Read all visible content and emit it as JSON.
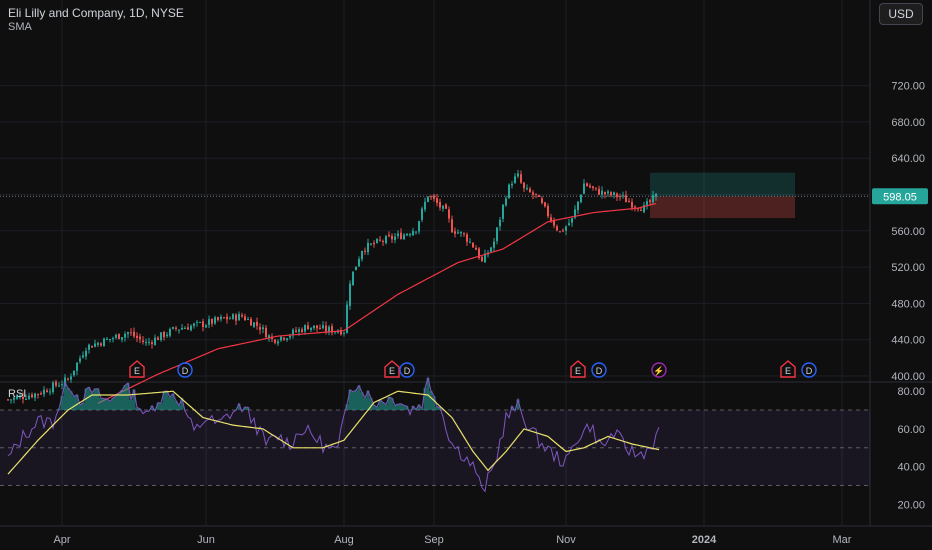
{
  "header": {
    "symbol_title": "Eli Lilly and Company, 1D, NYSE",
    "indicator": "SMA",
    "currency_button": "USD"
  },
  "rsi_pane": {
    "label": "RSI"
  },
  "colors": {
    "up": "#26a69a",
    "down": "#ef5350",
    "sma": "#f23645",
    "rsi": "#7e57c2",
    "rsi_ma": "#e8e26a",
    "earnings": "#f23645",
    "dividend": "#2962ff",
    "split": "#9c27b0"
  },
  "chart_data": [
    {
      "type": "candlestick",
      "title": "Eli Lilly and Company, 1D, NYSE",
      "series": [
        {
          "name": "SMA",
          "indicator": true
        }
      ],
      "y_axis": {
        "ticks": [
          "400.00",
          "440.00",
          "480.00",
          "520.00",
          "560.00",
          "600.00",
          "640.00",
          "680.00",
          "720.00"
        ],
        "range": [
          370,
          738
        ]
      },
      "x_axis": {
        "ticks": [
          "Apr",
          "Jun",
          "Aug",
          "Sep",
          "Nov",
          "2024",
          "Mar"
        ]
      },
      "last_price": "598.05",
      "price_anchors": [
        {
          "t": 0,
          "p": 374
        },
        {
          "t": 10,
          "p": 381
        },
        {
          "t": 20,
          "p": 396
        },
        {
          "t": 26,
          "p": 432
        },
        {
          "t": 34,
          "p": 441
        },
        {
          "t": 40,
          "p": 448
        },
        {
          "t": 46,
          "p": 436
        },
        {
          "t": 56,
          "p": 452
        },
        {
          "t": 66,
          "p": 458
        },
        {
          "t": 72,
          "p": 463
        },
        {
          "t": 78,
          "p": 466
        },
        {
          "t": 84,
          "p": 454
        },
        {
          "t": 88,
          "p": 440
        },
        {
          "t": 94,
          "p": 446
        },
        {
          "t": 100,
          "p": 455
        },
        {
          "t": 106,
          "p": 451
        },
        {
          "t": 112,
          "p": 450
        },
        {
          "t": 114,
          "p": 505
        },
        {
          "t": 118,
          "p": 540
        },
        {
          "t": 124,
          "p": 548
        },
        {
          "t": 132,
          "p": 556
        },
        {
          "t": 136,
          "p": 563
        },
        {
          "t": 140,
          "p": 600
        },
        {
          "t": 143,
          "p": 590
        },
        {
          "t": 146,
          "p": 580
        },
        {
          "t": 148,
          "p": 562
        },
        {
          "t": 152,
          "p": 555
        },
        {
          "t": 156,
          "p": 540
        },
        {
          "t": 158,
          "p": 525
        },
        {
          "t": 162,
          "p": 548
        },
        {
          "t": 166,
          "p": 600
        },
        {
          "t": 168,
          "p": 615
        },
        {
          "t": 170,
          "p": 620
        },
        {
          "t": 172,
          "p": 605
        },
        {
          "t": 176,
          "p": 598
        },
        {
          "t": 180,
          "p": 578
        },
        {
          "t": 184,
          "p": 558
        },
        {
          "t": 188,
          "p": 572
        },
        {
          "t": 192,
          "p": 612
        },
        {
          "t": 196,
          "p": 604
        },
        {
          "t": 200,
          "p": 600
        },
        {
          "t": 204,
          "p": 598
        },
        {
          "t": 208,
          "p": 590
        },
        {
          "t": 212,
          "p": 585
        },
        {
          "t": 216,
          "p": 598
        }
      ],
      "sma_anchors": [
        {
          "t": 30,
          "p": 370
        },
        {
          "t": 50,
          "p": 402
        },
        {
          "t": 70,
          "p": 430
        },
        {
          "t": 90,
          "p": 444
        },
        {
          "t": 112,
          "p": 450
        },
        {
          "t": 130,
          "p": 490
        },
        {
          "t": 150,
          "p": 525
        },
        {
          "t": 165,
          "p": 540
        },
        {
          "t": 180,
          "p": 570
        },
        {
          "t": 195,
          "p": 580
        },
        {
          "t": 210,
          "p": 585
        },
        {
          "t": 216,
          "p": 590
        }
      ],
      "position_box": {
        "entry": 598,
        "target": 624,
        "stop": 574
      },
      "events": [
        {
          "type": "E",
          "kind": "earnings",
          "t": 43
        },
        {
          "type": "D",
          "kind": "dividend",
          "t": 59
        },
        {
          "type": "E",
          "kind": "earnings",
          "t": 128
        },
        {
          "type": "D",
          "kind": "dividend",
          "t": 133
        },
        {
          "type": "E",
          "kind": "earnings",
          "t": 190
        },
        {
          "type": "D",
          "kind": "dividend",
          "t": 197
        },
        {
          "type": "⚡",
          "kind": "split",
          "t": 217
        },
        {
          "type": "E",
          "kind": "earnings",
          "t": 260
        },
        {
          "type": "D",
          "kind": "dividend",
          "t": 267
        }
      ]
    },
    {
      "type": "line",
      "title": "RSI",
      "y_axis": {
        "ticks": [
          "20.00",
          "40.00",
          "60.00",
          "80.00"
        ],
        "range": [
          16,
          92
        ]
      },
      "bands": {
        "upper": 70,
        "middle": 50,
        "lower": 30
      },
      "series": [
        {
          "name": "RSI",
          "anchors": [
            {
              "t": 0,
              "v": 44
            },
            {
              "t": 5,
              "v": 56
            },
            {
              "t": 10,
              "v": 64
            },
            {
              "t": 15,
              "v": 64
            },
            {
              "t": 20,
              "v": 85
            },
            {
              "t": 24,
              "v": 76
            },
            {
              "t": 28,
              "v": 80
            },
            {
              "t": 34,
              "v": 74
            },
            {
              "t": 38,
              "v": 83
            },
            {
              "t": 42,
              "v": 78
            },
            {
              "t": 46,
              "v": 66
            },
            {
              "t": 50,
              "v": 76
            },
            {
              "t": 54,
              "v": 80
            },
            {
              "t": 58,
              "v": 74
            },
            {
              "t": 62,
              "v": 58
            },
            {
              "t": 66,
              "v": 66
            },
            {
              "t": 70,
              "v": 62
            },
            {
              "t": 74,
              "v": 68
            },
            {
              "t": 78,
              "v": 72
            },
            {
              "t": 82,
              "v": 64
            },
            {
              "t": 86,
              "v": 52
            },
            {
              "t": 90,
              "v": 56
            },
            {
              "t": 94,
              "v": 52
            },
            {
              "t": 98,
              "v": 60
            },
            {
              "t": 102,
              "v": 56
            },
            {
              "t": 106,
              "v": 50
            },
            {
              "t": 110,
              "v": 48
            },
            {
              "t": 114,
              "v": 84
            },
            {
              "t": 118,
              "v": 82
            },
            {
              "t": 122,
              "v": 74
            },
            {
              "t": 126,
              "v": 76
            },
            {
              "t": 130,
              "v": 76
            },
            {
              "t": 134,
              "v": 70
            },
            {
              "t": 138,
              "v": 74
            },
            {
              "t": 140,
              "v": 86
            },
            {
              "t": 144,
              "v": 72
            },
            {
              "t": 148,
              "v": 52
            },
            {
              "t": 152,
              "v": 46
            },
            {
              "t": 156,
              "v": 38
            },
            {
              "t": 158,
              "v": 26
            },
            {
              "t": 162,
              "v": 40
            },
            {
              "t": 166,
              "v": 66
            },
            {
              "t": 170,
              "v": 72
            },
            {
              "t": 174,
              "v": 60
            },
            {
              "t": 178,
              "v": 52
            },
            {
              "t": 182,
              "v": 46
            },
            {
              "t": 186,
              "v": 42
            },
            {
              "t": 190,
              "v": 56
            },
            {
              "t": 194,
              "v": 62
            },
            {
              "t": 198,
              "v": 50
            },
            {
              "t": 202,
              "v": 58
            },
            {
              "t": 206,
              "v": 50
            },
            {
              "t": 210,
              "v": 46
            },
            {
              "t": 214,
              "v": 50
            },
            {
              "t": 217,
              "v": 58
            }
          ]
        },
        {
          "name": "RSI-based MA",
          "anchors": [
            {
              "t": 0,
              "v": 36
            },
            {
              "t": 10,
              "v": 54
            },
            {
              "t": 20,
              "v": 70
            },
            {
              "t": 28,
              "v": 78
            },
            {
              "t": 40,
              "v": 78
            },
            {
              "t": 55,
              "v": 80
            },
            {
              "t": 65,
              "v": 66
            },
            {
              "t": 75,
              "v": 62
            },
            {
              "t": 85,
              "v": 60
            },
            {
              "t": 95,
              "v": 50
            },
            {
              "t": 105,
              "v": 50
            },
            {
              "t": 112,
              "v": 54
            },
            {
              "t": 122,
              "v": 74
            },
            {
              "t": 130,
              "v": 80
            },
            {
              "t": 140,
              "v": 78
            },
            {
              "t": 148,
              "v": 66
            },
            {
              "t": 155,
              "v": 48
            },
            {
              "t": 160,
              "v": 38
            },
            {
              "t": 166,
              "v": 48
            },
            {
              "t": 172,
              "v": 60
            },
            {
              "t": 180,
              "v": 56
            },
            {
              "t": 186,
              "v": 48
            },
            {
              "t": 192,
              "v": 50
            },
            {
              "t": 200,
              "v": 56
            },
            {
              "t": 208,
              "v": 52
            },
            {
              "t": 217,
              "v": 49
            }
          ]
        }
      ]
    }
  ]
}
